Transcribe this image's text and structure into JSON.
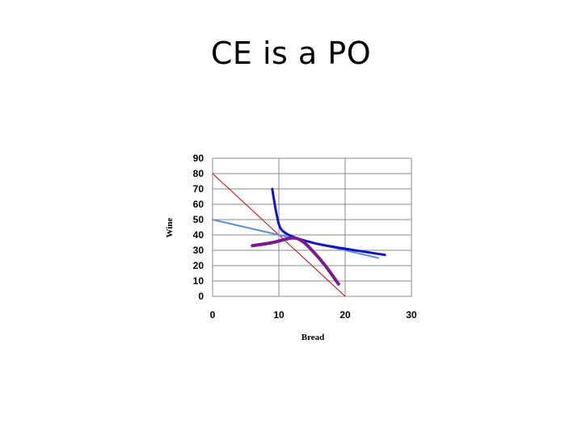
{
  "slide": {
    "title": "CE is a PO"
  },
  "chart_data": {
    "type": "line",
    "xlabel": "Bread",
    "ylabel": "Wine",
    "xlim": [
      0,
      30
    ],
    "ylim": [
      0,
      90
    ],
    "xticks": [
      0,
      10,
      20,
      30
    ],
    "yticks": [
      0,
      10,
      20,
      30,
      40,
      50,
      60,
      70,
      80,
      90
    ],
    "grid": true,
    "series": [
      {
        "color": "#cc0000",
        "points": [
          [
            0,
            80
          ],
          [
            20,
            0
          ]
        ]
      },
      {
        "color": "#5b8fd9",
        "points": [
          [
            0,
            50
          ],
          [
            25,
            25
          ]
        ]
      },
      {
        "color": "#1414c8",
        "points": [
          [
            9,
            70
          ],
          [
            9.5,
            57
          ],
          [
            10,
            47
          ],
          [
            10.5,
            43
          ],
          [
            11.5,
            40
          ],
          [
            13,
            37.5
          ],
          [
            16,
            34
          ],
          [
            20,
            31
          ],
          [
            23,
            29
          ],
          [
            26,
            27
          ]
        ]
      },
      {
        "color": "#7a1a8c",
        "points": [
          [
            6,
            33
          ],
          [
            9,
            35
          ],
          [
            12,
            38
          ],
          [
            13.5,
            36
          ],
          [
            15,
            30
          ],
          [
            17,
            20
          ],
          [
            19,
            8
          ]
        ]
      }
    ]
  }
}
